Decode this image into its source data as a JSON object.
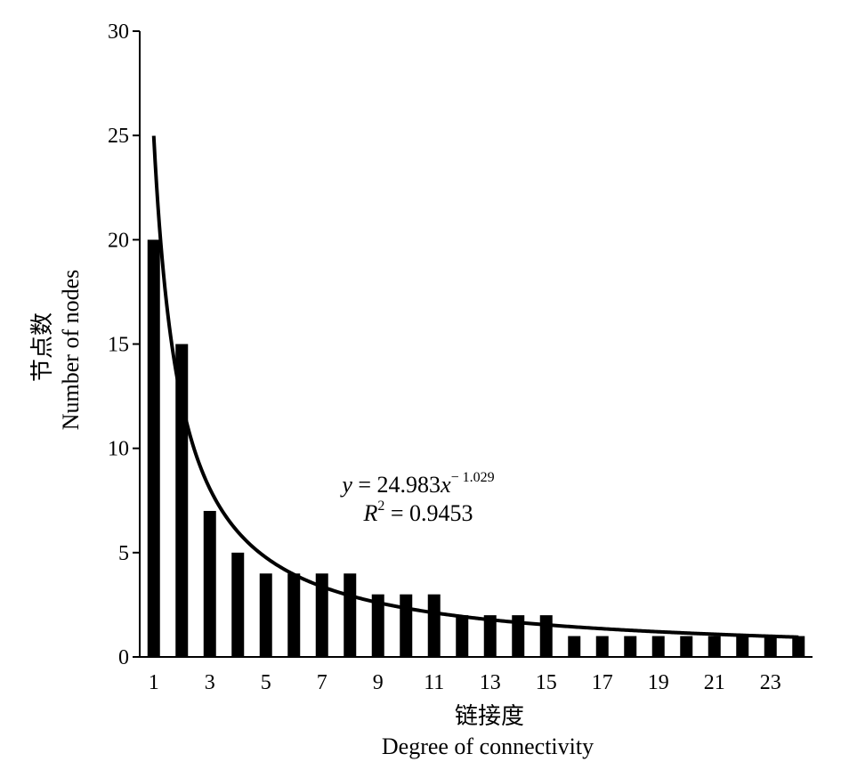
{
  "chart_data": {
    "type": "bar",
    "x": [
      1,
      2,
      3,
      4,
      5,
      6,
      7,
      8,
      9,
      10,
      11,
      12,
      13,
      14,
      15,
      16,
      17,
      18,
      19,
      20,
      21,
      22,
      23,
      24
    ],
    "values": [
      20,
      15,
      7,
      5,
      4,
      4,
      4,
      4,
      3,
      3,
      3,
      2,
      2,
      2,
      2,
      1,
      1,
      1,
      1,
      1,
      1,
      1,
      1,
      1
    ],
    "xlim": [
      0.5,
      24.5
    ],
    "ylim": [
      0,
      30
    ],
    "x_tick_labels": [
      "1",
      "3",
      "5",
      "7",
      "9",
      "11",
      "13",
      "15",
      "17",
      "19",
      "21",
      "23"
    ],
    "y_tick_labels": [
      "0",
      "5",
      "10",
      "15",
      "20",
      "25",
      "30"
    ],
    "xlabel_cn": "链接度",
    "xlabel_en": "Degree of connectivity",
    "ylabel_cn": "节点数",
    "ylabel_en": "Number of nodes",
    "fit": {
      "type": "power",
      "a": 24.983,
      "b": -1.029,
      "equation_parts": {
        "y": "y",
        "eq": " = 24.983",
        "x": "x",
        "exp": "− 1.029"
      },
      "r2_parts": {
        "r": "R",
        "sup": "2",
        "value": " = 0.9453"
      }
    },
    "grid": false,
    "legend": "none",
    "colors": {
      "bar": "#000000",
      "curve": "#000000",
      "axis": "#000000"
    }
  }
}
